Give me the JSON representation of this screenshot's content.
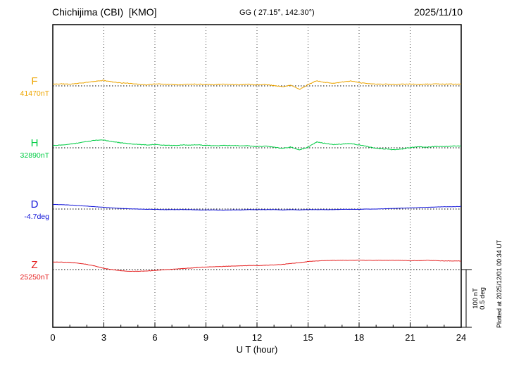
{
  "chart_data": {
    "type": "line",
    "title": "Chichijima (CBI)  [KMO]",
    "coords_label": "GG ( 27.15°, 142.30°)",
    "date": "2025/11/10",
    "xlabel": "U T (hour)",
    "x_range": [
      0,
      24
    ],
    "x_ticks": [
      0,
      3,
      6,
      9,
      12,
      15,
      18,
      21,
      24
    ],
    "grid_hours": [
      3,
      6,
      9,
      12,
      15,
      18,
      21
    ],
    "minor_tick_step_hours": 1,
    "sample_step_hours": 0.5,
    "scale_bar": {
      "labels": [
        "100 nT",
        "0.5 deg"
      ],
      "span_units": 100
    },
    "plotted_at": "Plotted at 2025/12/01 00:34 UT",
    "units_note": "series values are offsets from each baseline; 100 units equal the scale bar (100 nT, or 0.5 deg for D)",
    "series": [
      {
        "id": "F",
        "label": "F",
        "baseline_label": "41470nT",
        "color": "#eda500",
        "values": [
          3,
          3.5,
          3,
          4.5,
          6,
          8,
          9.5,
          7,
          5,
          4.5,
          3,
          1.5,
          3.5,
          3,
          2.5,
          2,
          3,
          3,
          2.5,
          2,
          3,
          2.5,
          2,
          3,
          1.5,
          2.5,
          0.5,
          -1.5,
          1,
          -6,
          2,
          9,
          6,
          4.5,
          6.5,
          8.5,
          5.5,
          4,
          3,
          3,
          2.5,
          3,
          3,
          2.5,
          3,
          3.5,
          3,
          3,
          3
        ]
      },
      {
        "id": "H",
        "label": "H",
        "baseline_label": "32890nT",
        "color": "#00cc44",
        "values": [
          4,
          5,
          6.5,
          8.5,
          11,
          13,
          13.5,
          11,
          8.5,
          7,
          6,
          5,
          5.5,
          4.5,
          4,
          4.5,
          5,
          5,
          4.5,
          3.5,
          4,
          4,
          3.5,
          3.5,
          2,
          3,
          1,
          -1,
          1.5,
          -3.5,
          1,
          10,
          7.5,
          5.5,
          6.5,
          7.5,
          5,
          2,
          -1,
          -2,
          -3,
          -2,
          0.5,
          2,
          1,
          2.5,
          2,
          3,
          3
        ]
      },
      {
        "id": "D",
        "label": "D",
        "baseline_label": "-4.7deg",
        "color": "#0f12d8",
        "values": [
          8,
          7.5,
          7,
          6,
          5,
          4,
          3,
          2,
          1,
          0.5,
          0,
          -0.5,
          -0.5,
          -1,
          -1,
          -1,
          -1,
          -1.5,
          -1.5,
          -1.5,
          -2,
          -1.5,
          -1.5,
          -1,
          -1,
          -1,
          -1,
          -1.5,
          -1,
          -1.5,
          -1,
          -1,
          -1,
          -1,
          -0.5,
          -0.5,
          -0.5,
          0,
          0,
          0.5,
          1,
          1.5,
          2,
          2.5,
          3,
          3.5,
          4,
          4,
          4.5
        ]
      },
      {
        "id": "Z",
        "label": "Z",
        "baseline_label": "25250nT",
        "color": "#e51f1f",
        "values": [
          13,
          13,
          12.5,
          11,
          9,
          6,
          2,
          0,
          -2,
          -3,
          -3,
          -2.5,
          -1.5,
          -0.5,
          0.5,
          1.5,
          2.5,
          3.5,
          4.5,
          5,
          5.5,
          6,
          6.5,
          7,
          7,
          7.5,
          8,
          9,
          10.5,
          12,
          14,
          15,
          15.5,
          16,
          16,
          16,
          16.5,
          16,
          16,
          16,
          16,
          16,
          15.5,
          15.5,
          16,
          15.5,
          15,
          15,
          15
        ]
      }
    ]
  }
}
